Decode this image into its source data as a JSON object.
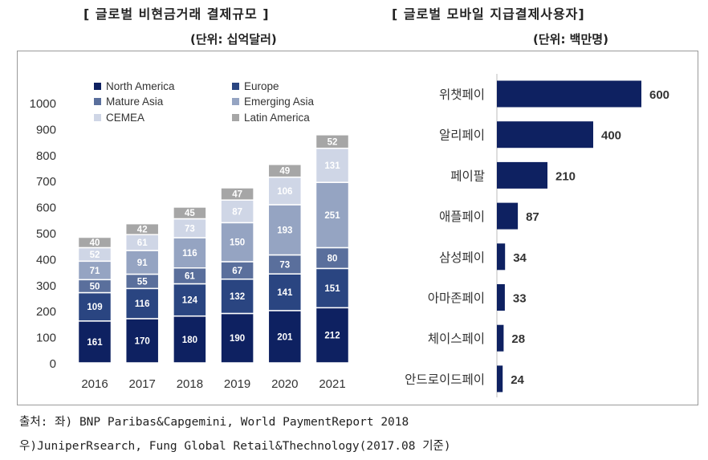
{
  "left_title": "[ 글로벌 비현금거래 결제규모 ]",
  "left_unit": "(단위: 십억달러)",
  "right_title": "[ 글로벌 모바일 지급결제사용자]",
  "right_unit": "(단위: 백만명)",
  "source_line1": "출처: 좌) BNP Paribas&Capgemini, World PaymentReport 2018",
  "source_line2": "우)JuniperRsearch, Fung Global Retail&Thechnology(2017.08 기준)",
  "chart_data": [
    {
      "type": "bar",
      "stacked": true,
      "categories": [
        "2016",
        "2017",
        "2018",
        "2019",
        "2020",
        "2021"
      ],
      "ylim": [
        0,
        1000
      ],
      "yticks": [
        "0",
        "100",
        "200",
        "300",
        "400",
        "500",
        "600",
        "700",
        "800",
        "900",
        "1000"
      ],
      "legend": "top-left",
      "series": [
        {
          "name": "North America",
          "color": "#0e2161",
          "values": [
            161,
            170,
            180,
            190,
            201,
            212
          ]
        },
        {
          "name": "Europe",
          "color": "#2a4581",
          "values": [
            109,
            116,
            124,
            132,
            141,
            151
          ]
        },
        {
          "name": "Mature Asia",
          "color": "#5a6f9c",
          "values": [
            50,
            55,
            61,
            67,
            73,
            80
          ]
        },
        {
          "name": "Emerging Asia",
          "color": "#95a4c2",
          "values": [
            71,
            91,
            116,
            150,
            193,
            251
          ]
        },
        {
          "name": "CEMEA",
          "color": "#cfd6e6",
          "values": [
            52,
            61,
            73,
            87,
            106,
            131
          ]
        },
        {
          "name": "Latin America",
          "color": "#a6a6a6",
          "values": [
            40,
            42,
            45,
            47,
            49,
            52
          ]
        }
      ]
    },
    {
      "type": "bar",
      "orientation": "horizontal",
      "categories": [
        "위챗페이",
        "알리페이",
        "페이팔",
        "애플페이",
        "삼성페이",
        "아마존페이",
        "체이스페이",
        "안드로이드페이"
      ],
      "values": [
        600,
        400,
        210,
        87,
        34,
        33,
        28,
        24
      ],
      "color": "#0e2161"
    }
  ]
}
